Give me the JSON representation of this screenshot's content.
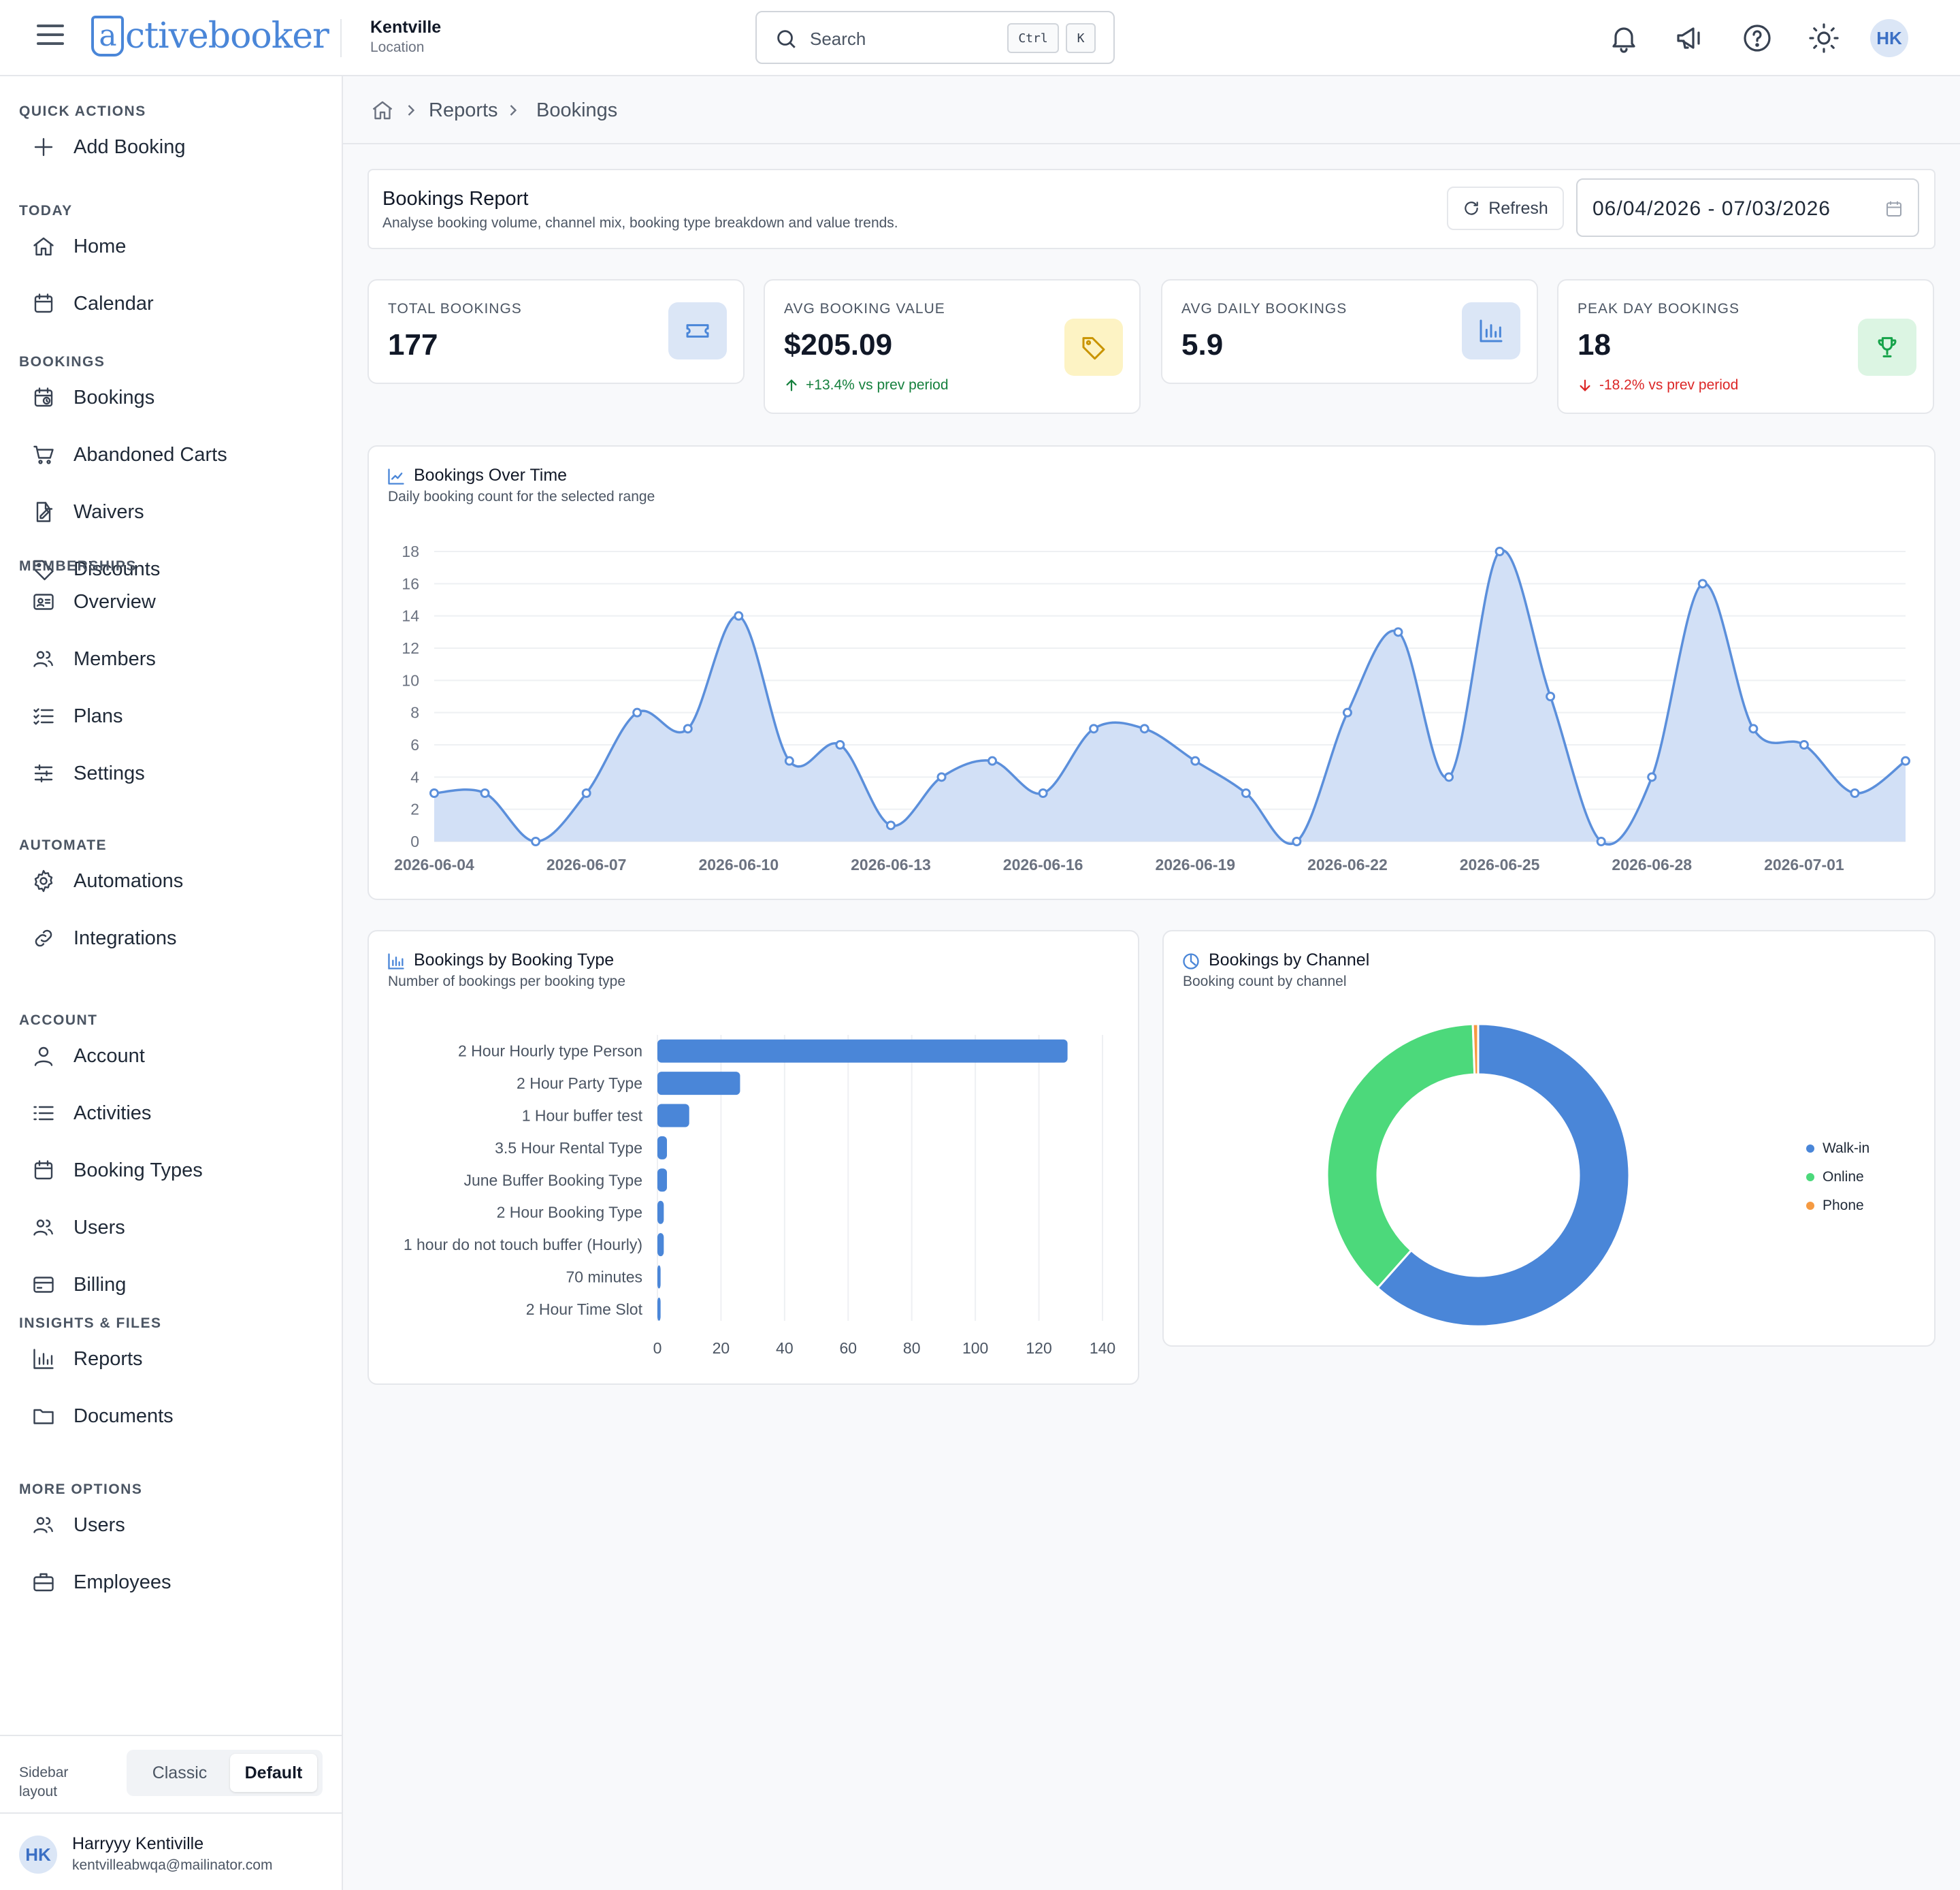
{
  "header": {
    "logo_text": "activebooker",
    "location_name": "Kentville",
    "location_sub": "Location",
    "search_placeholder": "Search",
    "shortcut_ctrl": "Ctrl",
    "shortcut_key": "K",
    "avatar_initials": "HK"
  },
  "sidebar": {
    "sections": [
      {
        "label": "QUICK ACTIONS",
        "items": [
          {
            "label": "Add Booking",
            "icon": "plus-icon"
          }
        ]
      },
      {
        "label": "TODAY",
        "items": [
          {
            "label": "Home",
            "icon": "home-icon"
          },
          {
            "label": "Calendar",
            "icon": "calendar-icon"
          }
        ]
      },
      {
        "label": "BOOKINGS",
        "items": [
          {
            "label": "Bookings",
            "icon": "calendar-clock-icon"
          },
          {
            "label": "Abandoned Carts",
            "icon": "cart-icon"
          },
          {
            "label": "Waivers",
            "icon": "file-signature-icon"
          },
          {
            "label": "Discounts",
            "icon": "tag-icon"
          }
        ]
      },
      {
        "label": "MEMBERSHIPS",
        "items": [
          {
            "label": "Overview",
            "icon": "id-card-icon"
          },
          {
            "label": "Members",
            "icon": "users-icon"
          },
          {
            "label": "Plans",
            "icon": "list-checks-icon"
          },
          {
            "label": "Settings",
            "icon": "sliders-icon"
          }
        ]
      },
      {
        "label": "AUTOMATE",
        "items": [
          {
            "label": "Automations",
            "icon": "gear-icon"
          },
          {
            "label": "Integrations",
            "icon": "link-icon"
          }
        ]
      },
      {
        "label": "ACCOUNT",
        "items": [
          {
            "label": "Account",
            "icon": "user-icon"
          },
          {
            "label": "Activities",
            "icon": "list-icon"
          },
          {
            "label": "Booking Types",
            "icon": "calendar-icon"
          },
          {
            "label": "Users",
            "icon": "users-icon"
          },
          {
            "label": "Billing",
            "icon": "credit-card-icon"
          }
        ]
      },
      {
        "label": "INSIGHTS & FILES",
        "items": [
          {
            "label": "Reports",
            "icon": "bar-chart-icon"
          },
          {
            "label": "Documents",
            "icon": "folder-icon"
          }
        ]
      },
      {
        "label": "MORE OPTIONS",
        "items": [
          {
            "label": "Users",
            "icon": "users-icon"
          },
          {
            "label": "Employees",
            "icon": "briefcase-icon"
          }
        ]
      }
    ],
    "layout_label": "Sidebar layout",
    "layout_options": [
      "Classic",
      "Default"
    ],
    "layout_selected": "Default",
    "user_initials": "HK",
    "user_name": "Harryyy Kentiville",
    "user_email": "kentvilleabwqa@mailinator.com"
  },
  "breadcrumb": {
    "items": [
      "Reports",
      "Bookings"
    ]
  },
  "report": {
    "title": "Bookings Report",
    "subtitle": "Analyse booking volume, channel mix, booking type breakdown and value trends.",
    "refresh_label": "Refresh",
    "date_range": "06/04/2026 - 07/03/2026"
  },
  "stats": [
    {
      "label": "TOTAL BOOKINGS",
      "value": "177",
      "icon": "ticket-icon",
      "icon_bg": "#dbe6f6",
      "icon_color": "#4a86d8",
      "delta": ""
    },
    {
      "label": "AVG BOOKING VALUE",
      "value": "$205.09",
      "icon": "tag-icon",
      "icon_bg": "#fdf3c4",
      "icon_color": "#c99400",
      "delta": "+13.4% vs prev period",
      "delta_dir": "up",
      "delta_color": "#15803d"
    },
    {
      "label": "AVG DAILY BOOKINGS",
      "value": "5.9",
      "icon": "bar-chart-icon",
      "icon_bg": "#dbe6f6",
      "icon_color": "#4a86d8",
      "delta": ""
    },
    {
      "label": "PEAK DAY BOOKINGS",
      "value": "18",
      "icon": "trophy-icon",
      "icon_bg": "#dcf5e3",
      "icon_color": "#16a34a",
      "delta": "-18.2% vs prev period",
      "delta_dir": "down",
      "delta_color": "#dc2626"
    }
  ],
  "charts": {
    "line_title": "Bookings Over Time",
    "line_subtitle": "Daily booking count for the selected range",
    "bar_title": "Bookings by Booking Type",
    "bar_subtitle": "Number of bookings per booking type",
    "donut_title": "Bookings by Channel",
    "donut_subtitle": "Booking count by channel"
  },
  "chart_data": [
    {
      "type": "area",
      "x": [
        "2026-06-04",
        "2026-06-05",
        "2026-06-06",
        "2026-06-07",
        "2026-06-08",
        "2026-06-09",
        "2026-06-10",
        "2026-06-11",
        "2026-06-12",
        "2026-06-13",
        "2026-06-14",
        "2026-06-15",
        "2026-06-16",
        "2026-06-17",
        "2026-06-18",
        "2026-06-19",
        "2026-06-20",
        "2026-06-21",
        "2026-06-22",
        "2026-06-23",
        "2026-06-24",
        "2026-06-25",
        "2026-06-26",
        "2026-06-27",
        "2026-06-28",
        "2026-06-29",
        "2026-06-30",
        "2026-07-01",
        "2026-07-02",
        "2026-07-03"
      ],
      "x_tick_labels": [
        "2026-06-04",
        "2026-06-07",
        "2026-06-10",
        "2026-06-13",
        "2026-06-16",
        "2026-06-19",
        "2026-06-22",
        "2026-06-25",
        "2026-06-28",
        "2026-07-01"
      ],
      "values": [
        3,
        3,
        0,
        3,
        8,
        7,
        14,
        5,
        6,
        1,
        4,
        5,
        3,
        7,
        7,
        5,
        3,
        0,
        8,
        13,
        4,
        18,
        9,
        0,
        4,
        16,
        7,
        6,
        3,
        5
      ],
      "ylim": [
        0,
        18
      ],
      "y_ticks": [
        0,
        2,
        4,
        6,
        8,
        10,
        12,
        14,
        16,
        18
      ],
      "grid": true,
      "color": "#5b8fdb",
      "fill": "#d2e0f6"
    },
    {
      "type": "bar",
      "orientation": "horizontal",
      "categories": [
        "2 Hour Hourly type Person",
        "2 Hour Party Type",
        "1 Hour buffer test",
        "3.5 Hour Rental Type",
        "June Buffer Booking Type",
        "2 Hour Booking Type",
        "1 hour do not touch buffer (Hourly)",
        "70 minutes",
        "2 Hour Time Slot"
      ],
      "values": [
        129,
        26,
        10,
        3,
        3,
        2,
        2,
        1,
        1
      ],
      "xlim": [
        0,
        140
      ],
      "x_ticks": [
        0,
        20,
        40,
        60,
        80,
        100,
        120,
        140
      ],
      "grid": true,
      "color": "#4a86d8"
    },
    {
      "type": "pie",
      "donut": true,
      "categories": [
        "Walk-in",
        "Online",
        "Phone"
      ],
      "values": [
        109,
        67,
        1
      ],
      "colors": [
        "#4a86d8",
        "#4cd97b",
        "#f59a42"
      ],
      "legend": "right"
    }
  ]
}
